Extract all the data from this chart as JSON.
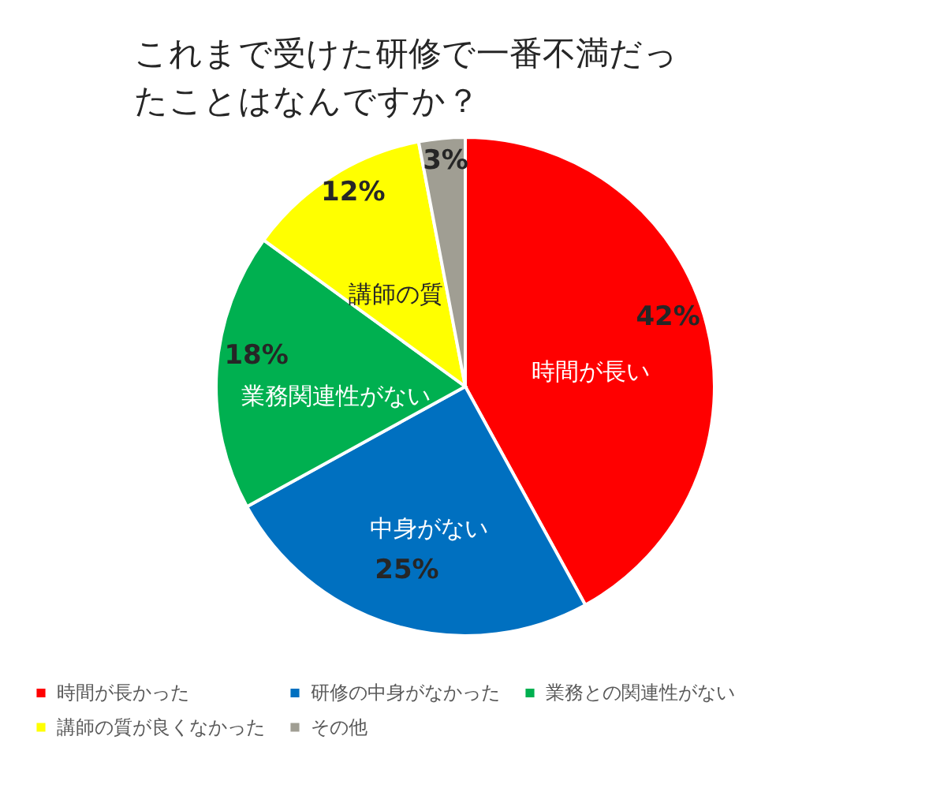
{
  "chart_data": {
    "type": "pie",
    "title": "これまで受けた研修で一番不満だったことはなんですか？",
    "categories": [
      "時間が長かった",
      "研修の中身がなかった",
      "業務との関連性がない",
      "講師の質が良くなかった",
      "その他"
    ],
    "values": [
      42,
      25,
      18,
      12,
      3
    ],
    "colors": [
      "#ff0000",
      "#0070c0",
      "#00b050",
      "#ffff00",
      "#a09e93"
    ],
    "value_labels": [
      "42%",
      "25%",
      "18%",
      "12%",
      "3%"
    ],
    "annotations": [
      {
        "text": "時間が長い",
        "x": "時間が長かった"
      },
      {
        "text": "中身がない",
        "x": "研修の中身がなかった"
      },
      {
        "text": "業務関連性がない",
        "x": "業務との関連性がない"
      },
      {
        "text": "講師の質",
        "x": "講師の質が良くなかった"
      }
    ],
    "legend": "bottom"
  }
}
